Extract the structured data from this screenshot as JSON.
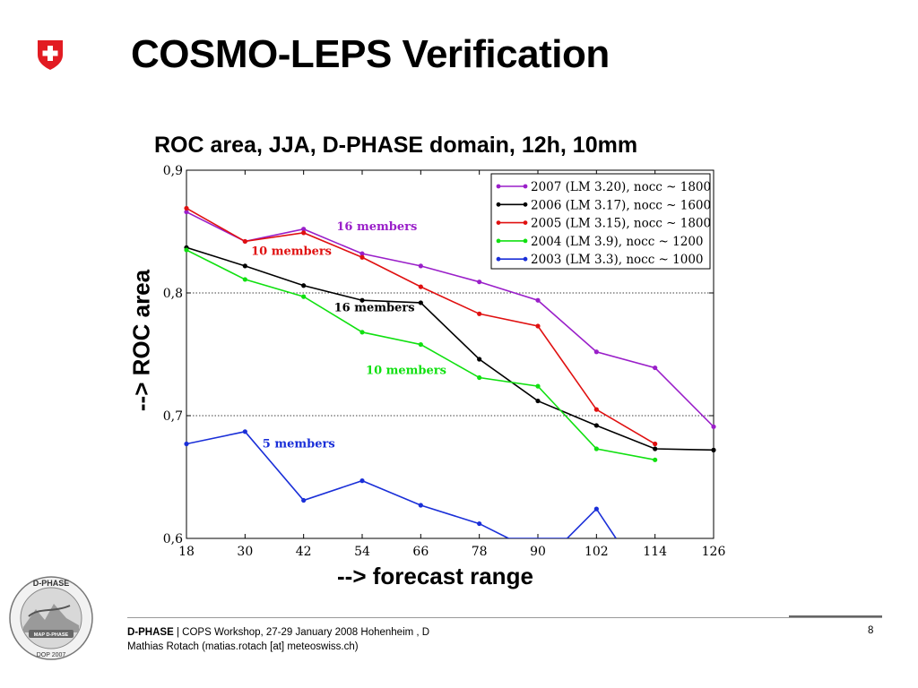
{
  "slide": {
    "title": "COSMO-LEPS Verification",
    "page_number": "8",
    "footer": {
      "org": "D-PHASE",
      "separator": " | ",
      "event": "COPS Workshop, 27-29 January 2008 Hohenheim , D",
      "author": "Mathias Rotach (matias.rotach [at] meteoswiss.ch)"
    },
    "logo_text": {
      "top": "D-PHASE",
      "bottom": "DOP 2007",
      "badge": "MAP D-PHASE"
    }
  },
  "chart_data": {
    "type": "line",
    "title": "ROC area, JJA, D-PHASE domain, 12h, 10mm",
    "xlabel": "--> forecast range",
    "ylabel": "--> ROC area",
    "x": [
      18,
      30,
      42,
      54,
      66,
      78,
      90,
      102,
      114,
      126
    ],
    "xlim": [
      18,
      126
    ],
    "ylim": [
      0.6,
      0.9
    ],
    "yticks": [
      0.6,
      0.7,
      0.8,
      0.9
    ],
    "ytick_labels": [
      "0,6",
      "0,7",
      "0,8",
      "0,9"
    ],
    "grid": "dotted horizontal at 0,7 and 0,8",
    "legend_position": "top-right",
    "series": [
      {
        "name": "2007 (LM 3.20), nocc ~ 1800",
        "color": "#9a1fc9",
        "points": [
          [
            18,
            0.866
          ],
          [
            30,
            0.842
          ],
          [
            42,
            0.852
          ],
          [
            54,
            0.832
          ],
          [
            66,
            0.822
          ],
          [
            78,
            0.809
          ],
          [
            90,
            0.794
          ],
          [
            102,
            0.752
          ],
          [
            114,
            0.739
          ],
          [
            126,
            0.691
          ]
        ]
      },
      {
        "name": "2006 (LM 3.17), nocc ~ 1600",
        "color": "#000000",
        "points": [
          [
            18,
            0.837
          ],
          [
            30,
            0.822
          ],
          [
            42,
            0.806
          ],
          [
            54,
            0.794
          ],
          [
            66,
            0.792
          ],
          [
            78,
            0.746
          ],
          [
            90,
            0.712
          ],
          [
            102,
            0.692
          ],
          [
            114,
            0.673
          ],
          [
            126,
            0.672
          ]
        ]
      },
      {
        "name": "2005 (LM 3.15), nocc ~ 1800",
        "color": "#e01010",
        "points": [
          [
            18,
            0.869
          ],
          [
            30,
            0.842
          ],
          [
            42,
            0.849
          ],
          [
            54,
            0.829
          ],
          [
            66,
            0.805
          ],
          [
            78,
            0.783
          ],
          [
            90,
            0.773
          ],
          [
            102,
            0.705
          ],
          [
            114,
            0.677
          ]
        ]
      },
      {
        "name": "2004 (LM 3.9), nocc ~ 1200",
        "color": "#10e010",
        "points": [
          [
            18,
            0.835
          ],
          [
            30,
            0.811
          ],
          [
            42,
            0.797
          ],
          [
            54,
            0.768
          ],
          [
            66,
            0.758
          ],
          [
            78,
            0.731
          ],
          [
            90,
            0.724
          ],
          [
            102,
            0.673
          ],
          [
            114,
            0.664
          ]
        ]
      },
      {
        "name": "2003 (LM 3.3), nocc ~ 1000",
        "color": "#1a2fd8",
        "points": [
          [
            18,
            0.677
          ],
          [
            30,
            0.687
          ],
          [
            42,
            0.631
          ],
          [
            54,
            0.647
          ],
          [
            66,
            0.627
          ],
          [
            78,
            0.612
          ],
          [
            84,
            0.6
          ],
          [
            96,
            0.6
          ],
          [
            102,
            0.624
          ],
          [
            106,
            0.6
          ]
        ]
      }
    ],
    "annotations": [
      {
        "text": "16 members",
        "color": "#9a1fc9",
        "x": 57,
        "y": 0.851
      },
      {
        "text": "10 members",
        "color": "#e01010",
        "x": 39.5,
        "y": 0.831
      },
      {
        "text": "16 members",
        "color": "#000000",
        "x": 56.5,
        "y": 0.785
      },
      {
        "text": "10 members",
        "color": "#10e010",
        "x": 63,
        "y": 0.734
      },
      {
        "text": "5 members",
        "color": "#1a2fd8",
        "x": 41,
        "y": 0.674
      }
    ]
  }
}
